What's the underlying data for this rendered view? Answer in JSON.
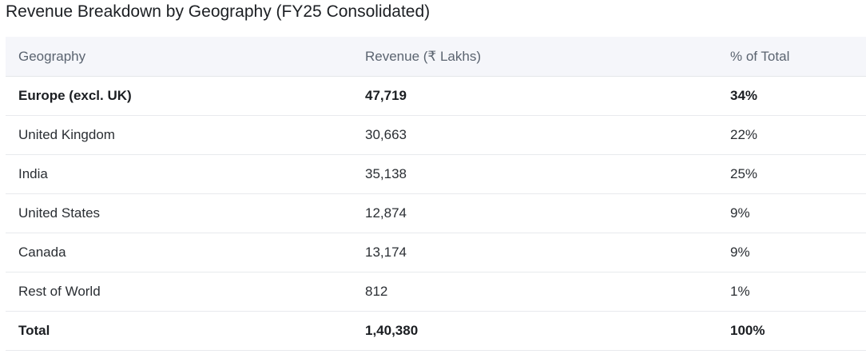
{
  "title": "Revenue Breakdown by Geography (FY25 Consolidated)",
  "table": {
    "headers": [
      "Geography",
      "Revenue (₹ Lakhs)",
      "% of Total"
    ],
    "rows": [
      {
        "geography": "Europe (excl. UK)",
        "revenue": "47,719",
        "percent": "34%",
        "bold": true
      },
      {
        "geography": "United Kingdom",
        "revenue": "30,663",
        "percent": "22%",
        "bold": false
      },
      {
        "geography": "India",
        "revenue": "35,138",
        "percent": "25%",
        "bold": false
      },
      {
        "geography": "United States",
        "revenue": "12,874",
        "percent": "9%",
        "bold": false
      },
      {
        "geography": "Canada",
        "revenue": "13,174",
        "percent": "9%",
        "bold": false
      },
      {
        "geography": "Rest of World",
        "revenue": "812",
        "percent": "1%",
        "bold": false
      },
      {
        "geography": "Total",
        "revenue": "1,40,380",
        "percent": "100%",
        "bold": true
      }
    ]
  }
}
